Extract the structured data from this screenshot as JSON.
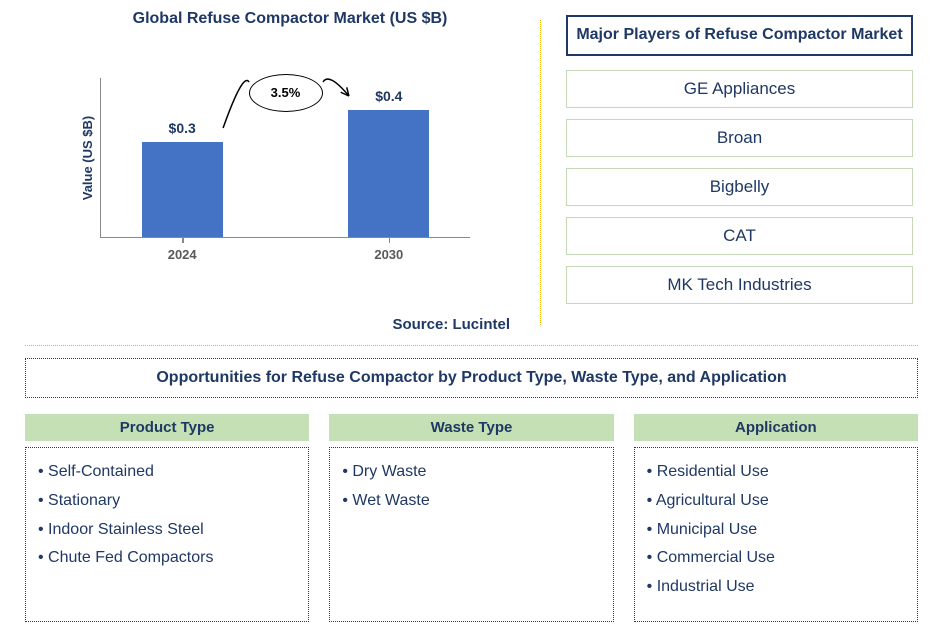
{
  "chart": {
    "type": "bar",
    "title": "Global Refuse Compactor Market (US $B)",
    "ylabel": "Value (US $B)",
    "categories": [
      "2024",
      "2030"
    ],
    "values": [
      0.3,
      0.4
    ],
    "display_values": [
      "$0.3",
      "$0.4"
    ],
    "bar_colors": [
      "#4472c4",
      "#4472c4"
    ],
    "bar_width_pct": 22,
    "bar_positions_pct": [
      22,
      78
    ],
    "ylim": [
      0,
      0.5
    ],
    "growth_label": "3.5%",
    "background_color": "#ffffff",
    "axis_color": "#888888",
    "text_color": "#1f3864"
  },
  "source": "Source: Lucintel",
  "players": {
    "title": "Major Players of Refuse Compactor Market",
    "items": [
      "GE Appliances",
      "Broan",
      "Bigbelly",
      "CAT",
      "MK Tech Industries"
    ],
    "title_border_color": "#1f3864",
    "item_border_color": "#c5d9b8"
  },
  "opportunities": {
    "title": "Opportunities for Refuse Compactor by Product Type, Waste Type, and Application",
    "columns": [
      {
        "header": "Product Type",
        "items": [
          "Self-Contained",
          "Stationary",
          "Indoor Stainless Steel",
          "Chute Fed Compactors"
        ]
      },
      {
        "header": "Waste Type",
        "items": [
          "Dry Waste",
          "Wet Waste"
        ]
      },
      {
        "header": "Application",
        "items": [
          "Residential Use",
          "Agricultural Use",
          "Municipal Use",
          "Commercial Use",
          "Industrial Use"
        ]
      }
    ],
    "header_bg": "#c5e0b4",
    "border_color": "#1f3864"
  },
  "separator_color": "#f0b000"
}
